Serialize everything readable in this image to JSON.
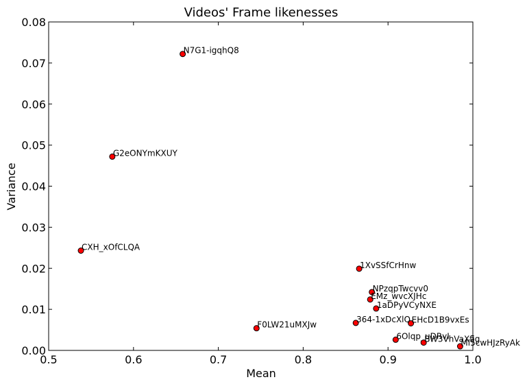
{
  "chart_data": {
    "type": "scatter",
    "title": "Videos' Frame likenesses",
    "xlabel": "Mean",
    "ylabel": "Variance",
    "xlim": [
      0.5,
      1.0
    ],
    "ylim": [
      0.0,
      0.08
    ],
    "x_ticks": [
      "0.5",
      "0.6",
      "0.7",
      "0.8",
      "0.9",
      "1.0"
    ],
    "y_ticks": [
      "0.00",
      "0.01",
      "0.02",
      "0.03",
      "0.04",
      "0.05",
      "0.06",
      "0.07",
      "0.08"
    ],
    "grid": false,
    "marker_color": "#ff0000",
    "marker_edge_color": "#000000",
    "points": [
      {
        "label": "N7G1-igqhQ8",
        "x": 0.658,
        "y": 0.0722
      },
      {
        "label": "G2eONYmKXUY",
        "x": 0.575,
        "y": 0.0472
      },
      {
        "label": "CXH_xOfCLQA",
        "x": 0.538,
        "y": 0.0243
      },
      {
        "label": "1XvSSfCrHnw",
        "x": 0.866,
        "y": 0.0199
      },
      {
        "label": "NPzqpTwcvv0",
        "x": 0.881,
        "y": 0.0142
      },
      {
        "label": "EMz_wvcXJHc",
        "x": 0.879,
        "y": 0.0124
      },
      {
        "label": "1aDPyVCyNXE",
        "x": 0.886,
        "y": 0.0102
      },
      {
        "label": "364-1xDcXlQ",
        "x": 0.862,
        "y": 0.0067
      },
      {
        "label": "EHcD1B9vxEs",
        "x": 0.927,
        "y": 0.0066
      },
      {
        "label": "F0LW21uMXJw",
        "x": 0.745,
        "y": 0.0054
      },
      {
        "label": "6Olqp_uDRvI",
        "x": 0.909,
        "y": 0.0026
      },
      {
        "label": "BW3VhVaXfig",
        "x": 0.942,
        "y": 0.0019
      },
      {
        "label": "Ml5cwHJzRyAk",
        "x": 0.985,
        "y": 0.001
      }
    ]
  }
}
